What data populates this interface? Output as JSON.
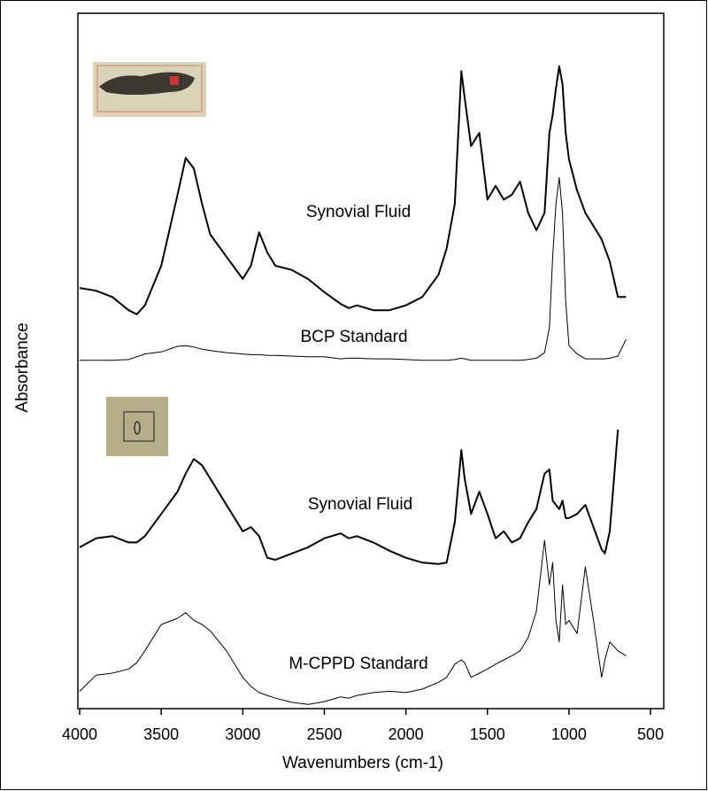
{
  "chart_data": {
    "type": "line",
    "xlabel": "Wavenumbers (cm-1)",
    "ylabel": "Absorbance",
    "xlim": [
      4011,
      419
    ],
    "ylim": [
      0,
      100
    ],
    "xticks": [
      4000,
      3500,
      3000,
      2500,
      2000,
      1500,
      1000,
      500
    ],
    "x": [
      4000,
      3900,
      3800,
      3700,
      3650,
      3600,
      3500,
      3400,
      3350,
      3300,
      3250,
      3200,
      3100,
      3000,
      2950,
      2900,
      2850,
      2800,
      2700,
      2600,
      2500,
      2400,
      2350,
      2300,
      2200,
      2100,
      2000,
      1900,
      1800,
      1750,
      1700,
      1660,
      1640,
      1600,
      1550,
      1500,
      1450,
      1400,
      1350,
      1300,
      1250,
      1200,
      1150,
      1120,
      1100,
      1080,
      1060,
      1040,
      1020,
      1000,
      950,
      900,
      850,
      800,
      780,
      750,
      700,
      650
    ],
    "series": [
      {
        "name": "Synovial Fluid",
        "color": "#000000",
        "line_width": 2,
        "values": [
          60.5,
          60.1,
          59.2,
          57.3,
          56.7,
          58.0,
          63.7,
          73.9,
          79.2,
          77.7,
          72.6,
          68.2,
          65.0,
          61.8,
          63.7,
          68.5,
          65.6,
          63.7,
          63.1,
          61.8,
          59.9,
          58.2,
          57.6,
          58.0,
          57.3,
          57.3,
          58.0,
          59.2,
          62.4,
          66.2,
          72.6,
          91.7,
          87.9,
          80.9,
          82.8,
          73.2,
          75.2,
          73.2,
          73.9,
          75.8,
          71.3,
          68.8,
          71.3,
          82.8,
          85.4,
          89.2,
          92.4,
          89.8,
          82.8,
          79.0,
          74.5,
          71.3,
          69.4,
          67.5,
          66.2,
          64.3,
          59.2,
          59.2
        ]
      },
      {
        "name": "BCP Standard",
        "color": "#000000",
        "line_width": 1,
        "values": [
          50.1,
          50.1,
          50.1,
          50.2,
          50.6,
          51.0,
          51.3,
          52.1,
          52.2,
          52.0,
          51.7,
          51.5,
          51.2,
          51.0,
          50.9,
          50.9,
          50.8,
          50.8,
          50.7,
          50.6,
          50.6,
          50.3,
          50.4,
          50.4,
          50.3,
          50.3,
          50.2,
          50.1,
          50.1,
          50.1,
          50.2,
          50.4,
          50.3,
          50.1,
          50.1,
          50.1,
          50.1,
          50.1,
          50.1,
          50.1,
          50.2,
          50.4,
          51.2,
          54.8,
          65.0,
          72.6,
          76.4,
          71.3,
          58.6,
          52.2,
          51.0,
          50.3,
          50.3,
          50.3,
          50.3,
          50.4,
          50.7,
          53.1
        ]
      },
      {
        "name": "Synovial Fluid",
        "color": "#000000",
        "line_width": 2,
        "values": [
          23.2,
          24.5,
          24.8,
          23.9,
          23.9,
          24.8,
          28.0,
          31.2,
          33.8,
          35.9,
          35.0,
          33.1,
          29.3,
          25.5,
          26.1,
          24.8,
          21.7,
          21.4,
          22.3,
          23.2,
          24.5,
          25.2,
          24.5,
          24.8,
          23.9,
          22.7,
          21.7,
          21.0,
          20.8,
          21.0,
          26.8,
          37.2,
          33.1,
          28.0,
          31.2,
          28.0,
          24.5,
          25.5,
          23.9,
          24.5,
          26.8,
          28.7,
          33.8,
          34.4,
          29.9,
          29.3,
          28.7,
          29.9,
          27.4,
          27.4,
          28.0,
          29.3,
          26.1,
          22.9,
          22.3,
          25.5,
          40.1,
          null
        ]
      },
      {
        "name": "M-CPPD Standard",
        "color": "#000000",
        "line_width": 1,
        "values": [
          2.5,
          4.8,
          5.1,
          5.7,
          6.6,
          8.3,
          12.1,
          13.0,
          13.8,
          12.7,
          12.1,
          11.2,
          8.3,
          4.5,
          3.2,
          2.3,
          1.9,
          1.5,
          0.9,
          0.6,
          1.0,
          1.7,
          1.5,
          1.9,
          2.3,
          2.5,
          2.3,
          2.8,
          3.8,
          4.5,
          6.4,
          7.0,
          6.6,
          4.5,
          5.1,
          5.7,
          6.4,
          7.0,
          7.6,
          8.3,
          10.2,
          14.0,
          24.2,
          17.8,
          21.0,
          12.7,
          9.6,
          17.8,
          12.1,
          12.7,
          10.8,
          20.4,
          12.7,
          4.5,
          7.0,
          9.6,
          8.3,
          7.6
        ]
      }
    ]
  }
}
